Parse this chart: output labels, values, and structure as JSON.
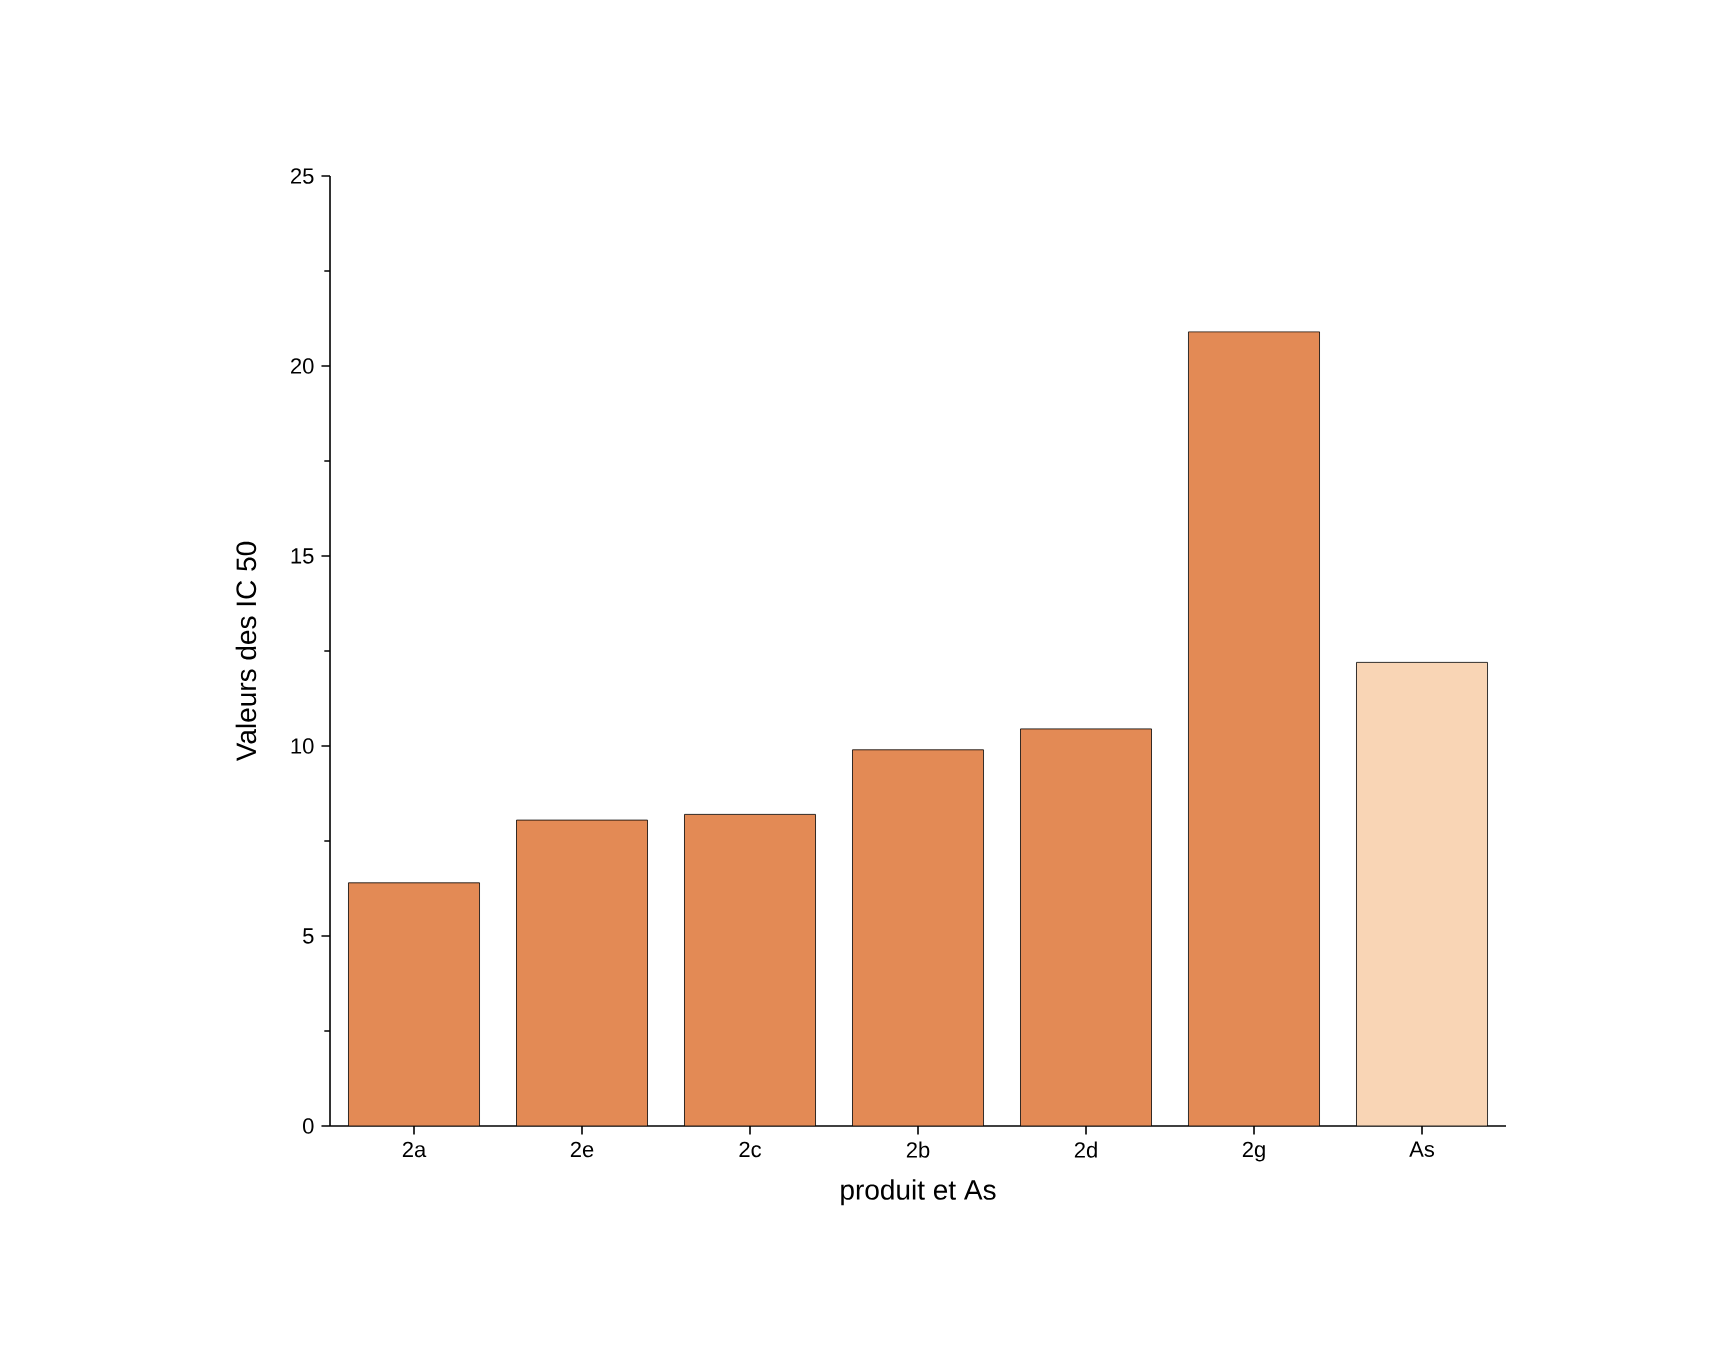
{
  "chart_data": {
    "type": "bar",
    "xlabel": "produit et As",
    "ylabel": "Valeurs des IC 50",
    "categories": [
      "2a",
      "2e",
      "2c",
      "2b",
      "2d",
      "2g",
      "As"
    ],
    "values": [
      6.4,
      8.05,
      8.2,
      9.9,
      10.45,
      20.9,
      12.2
    ],
    "colors": [
      "#e38a55",
      "#e38a55",
      "#e38a55",
      "#e38a55",
      "#e38a55",
      "#e38a55",
      "#f9d5b5"
    ],
    "ylim": [
      0,
      25
    ],
    "yticks": [
      0,
      5,
      10,
      15,
      20,
      25
    ],
    "grid": false
  }
}
